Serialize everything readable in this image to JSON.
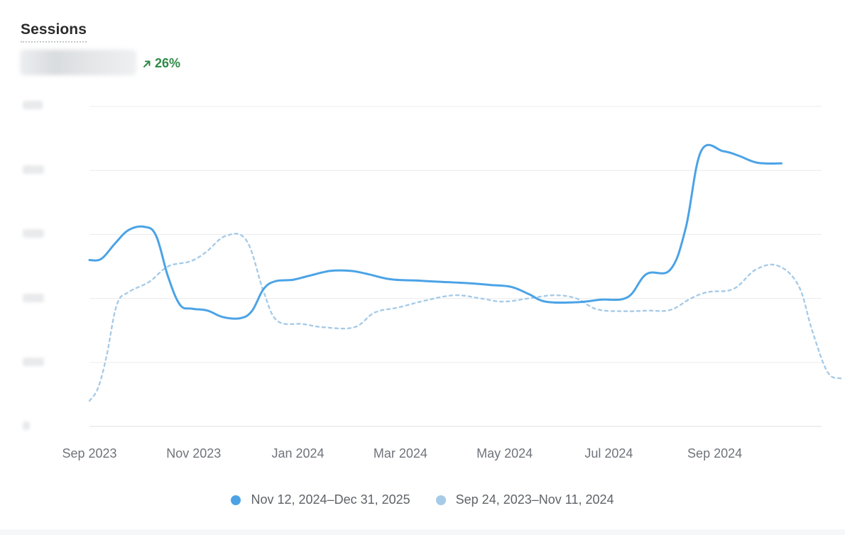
{
  "metric": {
    "title": "Sessions",
    "change_text": "26%",
    "change_icon": "arrow-up-right-icon",
    "change_color": "#2f8a46"
  },
  "chart_data": {
    "type": "line",
    "x_axis": {
      "range": [
        "2023-09-01",
        "2024-12-11"
      ],
      "tick_labels": [
        {
          "label": "Sep 2023",
          "date": "2023-09-01"
        },
        {
          "label": "Nov 2023",
          "date": "2023-11-01"
        },
        {
          "label": "Jan 2024",
          "date": "2024-01-01"
        },
        {
          "label": "Mar 2024",
          "date": "2024-03-01"
        },
        {
          "label": "May 2024",
          "date": "2024-05-01"
        },
        {
          "label": "Jul 2024",
          "date": "2024-07-01"
        },
        {
          "label": "Sep 2024",
          "date": "2024-09-01"
        }
      ]
    },
    "y_axis": {
      "range": [
        0,
        5
      ],
      "gridlines": [
        0,
        1,
        2,
        3,
        4,
        5
      ]
    },
    "grid": true,
    "legend_position": "bottom-center",
    "series": [
      {
        "name": "Nov 12, 2024–Dec 31, 2025",
        "color": "#4ba3e6",
        "dashed": false,
        "points": [
          [
            "2023-09-01",
            2.6
          ],
          [
            "2023-09-08",
            2.62
          ],
          [
            "2023-09-16",
            2.86
          ],
          [
            "2023-09-24",
            3.07
          ],
          [
            "2023-10-03",
            3.12
          ],
          [
            "2023-10-10",
            2.98
          ],
          [
            "2023-10-17",
            2.34
          ],
          [
            "2023-10-24",
            1.9
          ],
          [
            "2023-10-31",
            1.84
          ],
          [
            "2023-11-09",
            1.81
          ],
          [
            "2023-11-18",
            1.71
          ],
          [
            "2023-11-28",
            1.69
          ],
          [
            "2023-12-05",
            1.8
          ],
          [
            "2023-12-12",
            2.15
          ],
          [
            "2023-12-19",
            2.27
          ],
          [
            "2023-12-29",
            2.29
          ],
          [
            "2024-01-07",
            2.35
          ],
          [
            "2024-01-20",
            2.43
          ],
          [
            "2024-02-01",
            2.43
          ],
          [
            "2024-02-11",
            2.38
          ],
          [
            "2024-02-24",
            2.3
          ],
          [
            "2024-03-10",
            2.28
          ],
          [
            "2024-03-24",
            2.26
          ],
          [
            "2024-04-09",
            2.24
          ],
          [
            "2024-04-23",
            2.21
          ],
          [
            "2024-05-05",
            2.18
          ],
          [
            "2024-05-15",
            2.07
          ],
          [
            "2024-05-25",
            1.95
          ],
          [
            "2024-06-12",
            1.94
          ],
          [
            "2024-06-26",
            1.98
          ],
          [
            "2024-07-12",
            2.02
          ],
          [
            "2024-07-23",
            2.38
          ],
          [
            "2024-08-06",
            2.45
          ],
          [
            "2024-08-15",
            3.1
          ],
          [
            "2024-08-24",
            4.3
          ],
          [
            "2024-09-06",
            4.3
          ],
          [
            "2024-09-15",
            4.23
          ],
          [
            "2024-09-26",
            4.12
          ],
          [
            "2024-10-10",
            4.11
          ]
        ]
      },
      {
        "name": "Sep 24, 2023–Nov 11, 2024",
        "color": "#a6cbe8",
        "dashed": true,
        "points": [
          [
            "2023-09-01",
            0.4
          ],
          [
            "2023-09-06",
            0.6
          ],
          [
            "2023-09-11",
            1.1
          ],
          [
            "2023-09-17",
            1.9
          ],
          [
            "2023-09-24",
            2.1
          ],
          [
            "2023-10-06",
            2.26
          ],
          [
            "2023-10-17",
            2.5
          ],
          [
            "2023-10-30",
            2.58
          ],
          [
            "2023-11-08",
            2.72
          ],
          [
            "2023-11-20",
            2.98
          ],
          [
            "2023-12-02",
            2.9
          ],
          [
            "2023-12-12",
            2.1
          ],
          [
            "2023-12-20",
            1.65
          ],
          [
            "2024-01-04",
            1.6
          ],
          [
            "2024-01-16",
            1.55
          ],
          [
            "2024-02-03",
            1.55
          ],
          [
            "2024-02-15",
            1.78
          ],
          [
            "2024-02-29",
            1.86
          ],
          [
            "2024-03-16",
            1.97
          ],
          [
            "2024-04-02",
            2.05
          ],
          [
            "2024-04-17",
            2.0
          ],
          [
            "2024-04-30",
            1.95
          ],
          [
            "2024-05-15",
            2.0
          ],
          [
            "2024-05-30",
            2.05
          ],
          [
            "2024-06-12",
            2.0
          ],
          [
            "2024-06-24",
            1.83
          ],
          [
            "2024-07-10",
            1.8
          ],
          [
            "2024-07-24",
            1.81
          ],
          [
            "2024-08-06",
            1.82
          ],
          [
            "2024-08-18",
            2.0
          ],
          [
            "2024-08-28",
            2.1
          ],
          [
            "2024-09-12",
            2.15
          ],
          [
            "2024-09-25",
            2.45
          ],
          [
            "2024-10-08",
            2.51
          ],
          [
            "2024-10-20",
            2.2
          ],
          [
            "2024-10-28",
            1.5
          ],
          [
            "2024-11-06",
            0.85
          ],
          [
            "2024-11-14",
            0.75
          ]
        ]
      }
    ]
  }
}
